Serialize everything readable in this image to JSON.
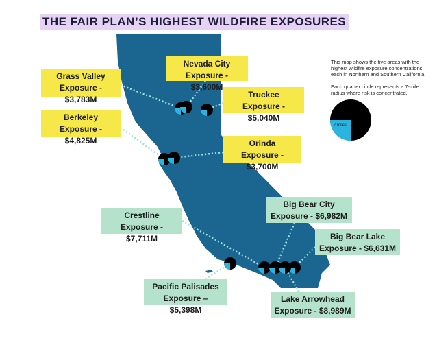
{
  "title": "THE FAIR PLAN’S HIGHEST WILDFIRE EXPOSURES",
  "callouts": [
    {
      "name": "Grass Valley",
      "exposure": "Exposure - $3,783M"
    },
    {
      "name": "Nevada City",
      "exposure": "Exposure - $3,600M"
    },
    {
      "name": "Truckee",
      "exposure": "Exposure - $5,040M"
    },
    {
      "name": "Berkeley",
      "exposure": "Exposure - $4,825M"
    },
    {
      "name": "Orinda",
      "exposure": "Exposure - $3,700M"
    },
    {
      "name": "Crestline",
      "exposure": "Exposure - $7,711M"
    },
    {
      "name": "Big Bear City",
      "exposure": "Exposure - $6,982M"
    },
    {
      "name": "Big Bear Lake",
      "exposure": "Exposure - $6,631M"
    },
    {
      "name": "Pacific Palisades",
      "exposure": "Exposure – $5,398M"
    },
    {
      "name": "Lake Arrowhead",
      "exposure": "Exposure - $8,989M"
    }
  ],
  "legend": {
    "description": "This map shows the five areas with the highest wildfire exposure concentrations each in Northern and Southern California.",
    "note": "Each quarter circle represents a 7-mile radius where risk is concentrated.",
    "radius_label": "7 miles"
  }
}
